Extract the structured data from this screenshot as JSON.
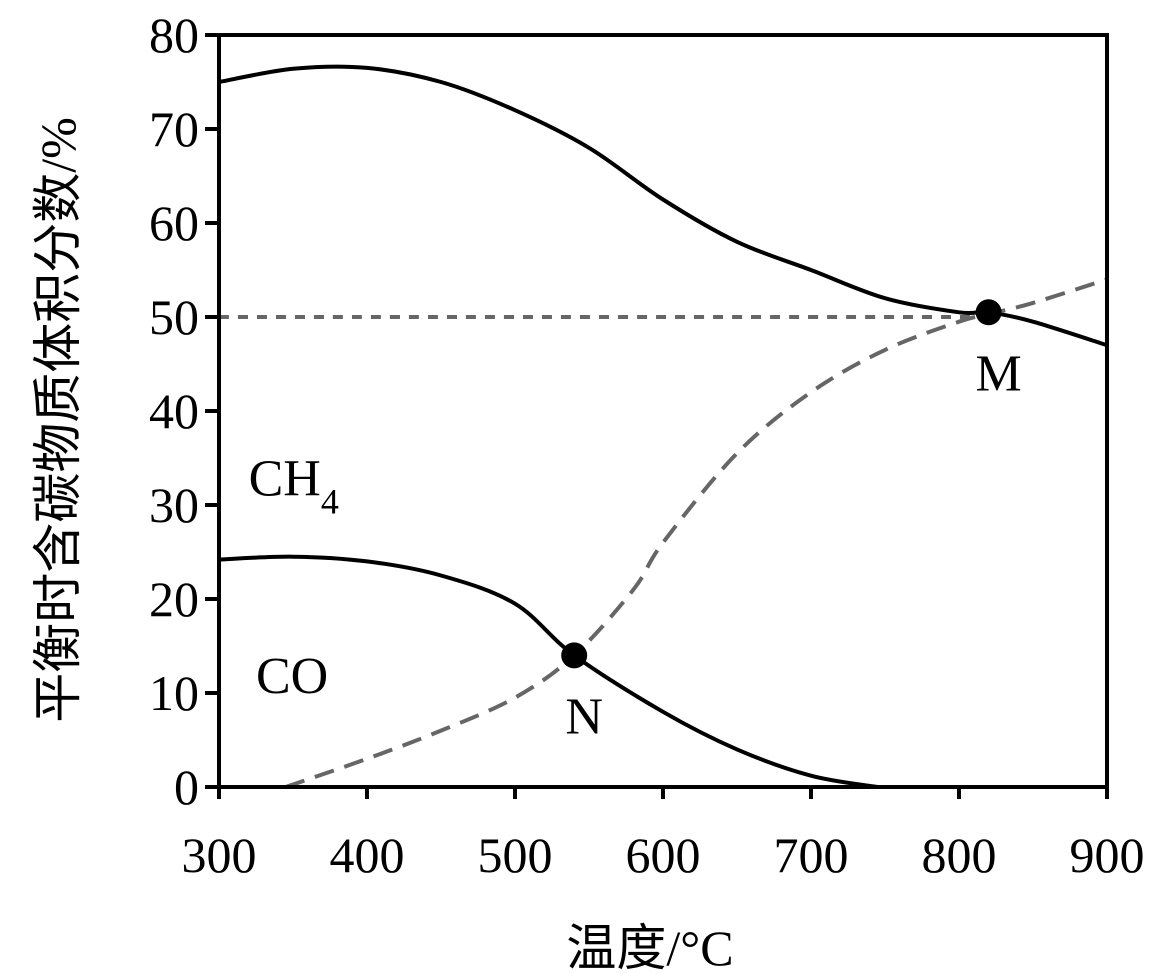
{
  "chart_data": {
    "type": "line",
    "xlabel": "温度/°C",
    "ylabel": "平衡时含碳物质体积分数/%",
    "xlim": [
      300,
      900
    ],
    "ylim": [
      0,
      80
    ],
    "xticks": [
      300,
      400,
      500,
      600,
      700,
      800,
      900
    ],
    "yticks": [
      0,
      10,
      20,
      30,
      40,
      50,
      60,
      70,
      80
    ],
    "grid": false,
    "series": [
      {
        "style": "solid",
        "color": "#000000",
        "x": [
          300,
          350,
          400,
          450,
          500,
          550,
          600,
          650,
          700,
          750,
          800,
          820,
          850,
          900
        ],
        "values": [
          75,
          76.4,
          76.5,
          75,
          72,
          68,
          62.5,
          58,
          55,
          52,
          50.5,
          50.5,
          49.5,
          47
        ]
      },
      {
        "style": "solid",
        "color": "#000000",
        "x": [
          300,
          350,
          400,
          450,
          500,
          540,
          600,
          650,
          700,
          745
        ],
        "values": [
          24.2,
          24.5,
          24,
          22.5,
          19.5,
          14,
          8,
          4,
          1.2,
          0
        ]
      },
      {
        "style": "dashed",
        "color": "#666666",
        "x": [
          345,
          400,
          450,
          500,
          540,
          580,
          600,
          650,
          700,
          750,
          800,
          820,
          850,
          900
        ],
        "values": [
          0,
          3,
          6,
          9.5,
          14,
          21,
          26,
          35.5,
          42,
          46.5,
          49.5,
          50.3,
          51.5,
          54
        ]
      },
      {
        "style": "dotted",
        "color": "#666666",
        "x": [
          300,
          820
        ],
        "values": [
          50,
          50
        ]
      }
    ],
    "labels": [
      {
        "text": "CH",
        "sub": "4",
        "x": 320,
        "y": 31
      },
      {
        "text": "CO",
        "x": 325,
        "y": 10
      }
    ],
    "points": [
      {
        "name": "N",
        "x": 540,
        "y": 14
      },
      {
        "name": "M",
        "x": 820,
        "y": 50.5
      }
    ]
  }
}
